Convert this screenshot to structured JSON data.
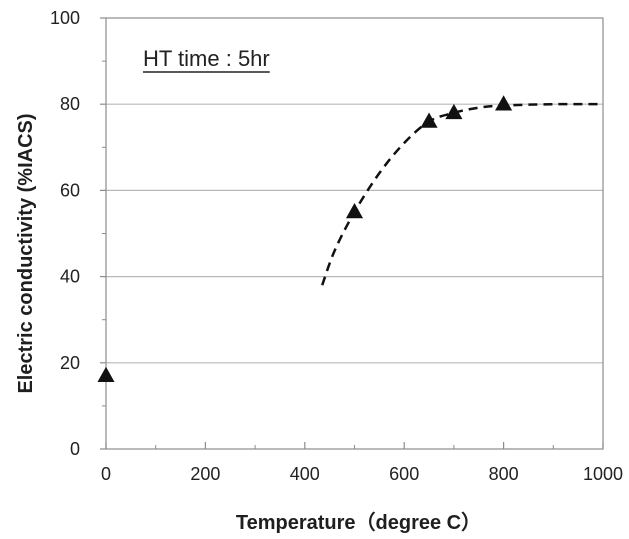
{
  "chart_data": {
    "type": "scatter",
    "xlabel": "Temperature（degree C）",
    "ylabel": "Electric conductivity (%IACS)",
    "annotation": "HT time : 5hr",
    "xlim": [
      0,
      1000
    ],
    "ylim": [
      0,
      100
    ],
    "x_ticks": [
      0,
      200,
      400,
      600,
      800,
      1000
    ],
    "x_minor_ticks": [
      100,
      300,
      500,
      700,
      900
    ],
    "y_ticks": [
      0,
      20,
      40,
      60,
      80,
      100
    ],
    "grid": "horizontal",
    "series": [
      {
        "marker": "triangle",
        "color": "#111111",
        "points": [
          {
            "x": 0,
            "y": 17
          },
          {
            "x": 500,
            "y": 55
          },
          {
            "x": 650,
            "y": 76
          },
          {
            "x": 700,
            "y": 78
          },
          {
            "x": 800,
            "y": 80
          }
        ]
      }
    ],
    "fit_curve": {
      "style": "dashed",
      "color": "#111111",
      "points": [
        {
          "x": 435,
          "y": 38
        },
        {
          "x": 460,
          "y": 46
        },
        {
          "x": 500,
          "y": 55
        },
        {
          "x": 550,
          "y": 64
        },
        {
          "x": 600,
          "y": 71
        },
        {
          "x": 650,
          "y": 76
        },
        {
          "x": 700,
          "y": 78
        },
        {
          "x": 750,
          "y": 79.2
        },
        {
          "x": 800,
          "y": 79.7
        },
        {
          "x": 900,
          "y": 80
        },
        {
          "x": 1000,
          "y": 80
        }
      ]
    }
  }
}
